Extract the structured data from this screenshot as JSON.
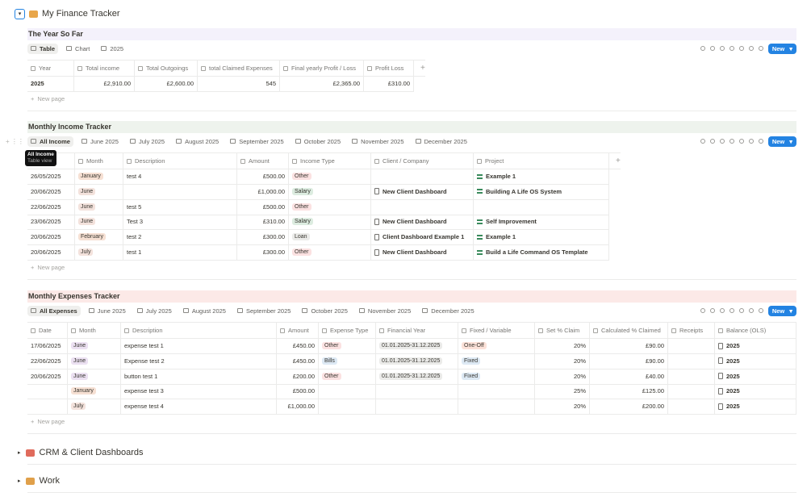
{
  "header": {
    "title": "My Finance Tracker"
  },
  "databases": [
    {
      "title": "The Year So Far",
      "title_bg": "#f4f1fb",
      "views": [
        "Table",
        "Chart",
        "2025"
      ],
      "new_button": "New",
      "columns": [
        "Year",
        "Total income",
        "Total Outgoings",
        "total Claimed Expenses",
        "Final yearly Profit / Loss",
        "Profit Loss"
      ],
      "rows": [
        [
          "2025",
          "£2,910.00",
          "£2,600.00",
          "545",
          "£2,365.00",
          "£310.00"
        ]
      ],
      "new_page": "New page"
    },
    {
      "title": "Monthly Income Tracker",
      "title_bg": "#eef3ed",
      "views": [
        "All Income",
        "June 2025",
        "July 2025",
        "August 2025",
        "September 2025",
        "October 2025",
        "November 2025",
        "December 2025"
      ],
      "new_button": "New",
      "tooltip": {
        "title": "All Income",
        "subtitle": "Table view"
      },
      "columns": [
        null,
        "Month",
        "Description",
        "Amount",
        "Income Type",
        "Client / Company",
        "Project"
      ],
      "rows": [
        [
          "26/05/2025",
          {
            "label": "January",
            "color": "#f6e0d3"
          },
          "test 4",
          "£500.00",
          {
            "label": "Other",
            "color": "#fbe1e1"
          },
          null,
          "Example 1"
        ],
        [
          "20/06/2025",
          {
            "label": "June",
            "color": "#f3e2dc"
          },
          null,
          "£1,000.00",
          {
            "label": "Salary",
            "color": "#dcece0"
          },
          "New Client Dashboard",
          "Building A Life OS System"
        ],
        [
          "22/06/2025",
          {
            "label": "June",
            "color": "#f3e2dc"
          },
          "test 5",
          "£500.00",
          {
            "label": "Other",
            "color": "#fbe1e1"
          },
          null,
          null
        ],
        [
          "23/06/2025",
          {
            "label": "June",
            "color": "#f3e2dc"
          },
          "Test 3",
          "£310.00",
          {
            "label": "Salary",
            "color": "#dcece0"
          },
          "New Client Dashboard",
          "Self Improvement"
        ],
        [
          "20/06/2025",
          {
            "label": "February",
            "color": "#f6e0d3"
          },
          "test 2",
          "£300.00",
          {
            "label": "Loan",
            "color": "#ebebe9"
          },
          "Client Dashboard Example 1",
          "Example 1"
        ],
        [
          "20/06/2025",
          {
            "label": "July",
            "color": "#f3e2dc"
          },
          "test 1",
          "£300.00",
          {
            "label": "Other",
            "color": "#fbe1e1"
          },
          "New Client Dashboard",
          "Build a Life Command OS Template"
        ]
      ],
      "new_page": "New page"
    },
    {
      "title": "Monthly Expenses Tracker",
      "title_bg": "#fce9e7",
      "views": [
        "All Expenses",
        "June 2025",
        "July 2025",
        "August 2025",
        "September 2025",
        "October 2025",
        "November 2025",
        "December 2025"
      ],
      "new_button": "New",
      "columns": [
        "Date",
        "Month",
        "Description",
        "Amount",
        "Expense Type",
        "Financial Year",
        "Fixed / Variable",
        "Set % Claim",
        "Calculated % Claimed",
        "Receipts",
        "Balance (OLS)"
      ],
      "rows": [
        [
          "17/06/2025",
          {
            "label": "June",
            "color": "#ebe0f1"
          },
          "expense test 1",
          "£450.00",
          {
            "label": "Other",
            "color": "#fbe1e1"
          },
          {
            "label": "01.01.2025-31.12.2025",
            "color": "#ebebe9"
          },
          {
            "label": "One-Off",
            "color": "#fbe1d8"
          },
          "20%",
          "£90.00",
          null,
          "2025"
        ],
        [
          "22/06/2025",
          {
            "label": "June",
            "color": "#ebe0f1"
          },
          "Expense test 2",
          "£450.00",
          {
            "label": "Bills",
            "color": "#dde9f4"
          },
          {
            "label": "01.01.2025-31.12.2025",
            "color": "#ebebe9"
          },
          {
            "label": "Fixed",
            "color": "#dde9f4"
          },
          "20%",
          "£90.00",
          null,
          "2025"
        ],
        [
          "20/06/2025",
          {
            "label": "June",
            "color": "#ebe0f1"
          },
          "button test 1",
          "£200.00",
          {
            "label": "Other",
            "color": "#fbe1e1"
          },
          {
            "label": "01.01.2025-31.12.2025",
            "color": "#ebebe9"
          },
          {
            "label": "Fixed",
            "color": "#dde9f4"
          },
          "20%",
          "£40.00",
          null,
          "2025"
        ],
        [
          null,
          {
            "label": "January",
            "color": "#f6e0d3"
          },
          "expense test 3",
          "£500.00",
          null,
          null,
          null,
          "25%",
          "£125.00",
          null,
          "2025"
        ],
        [
          null,
          {
            "label": "July",
            "color": "#f3e2dc"
          },
          "expense test 4",
          "£1,000.00",
          null,
          null,
          null,
          "20%",
          "£200.00",
          null,
          "2025"
        ]
      ],
      "new_page": "New page"
    }
  ],
  "toggles": [
    "CRM & Client Dashboards",
    "Work"
  ]
}
